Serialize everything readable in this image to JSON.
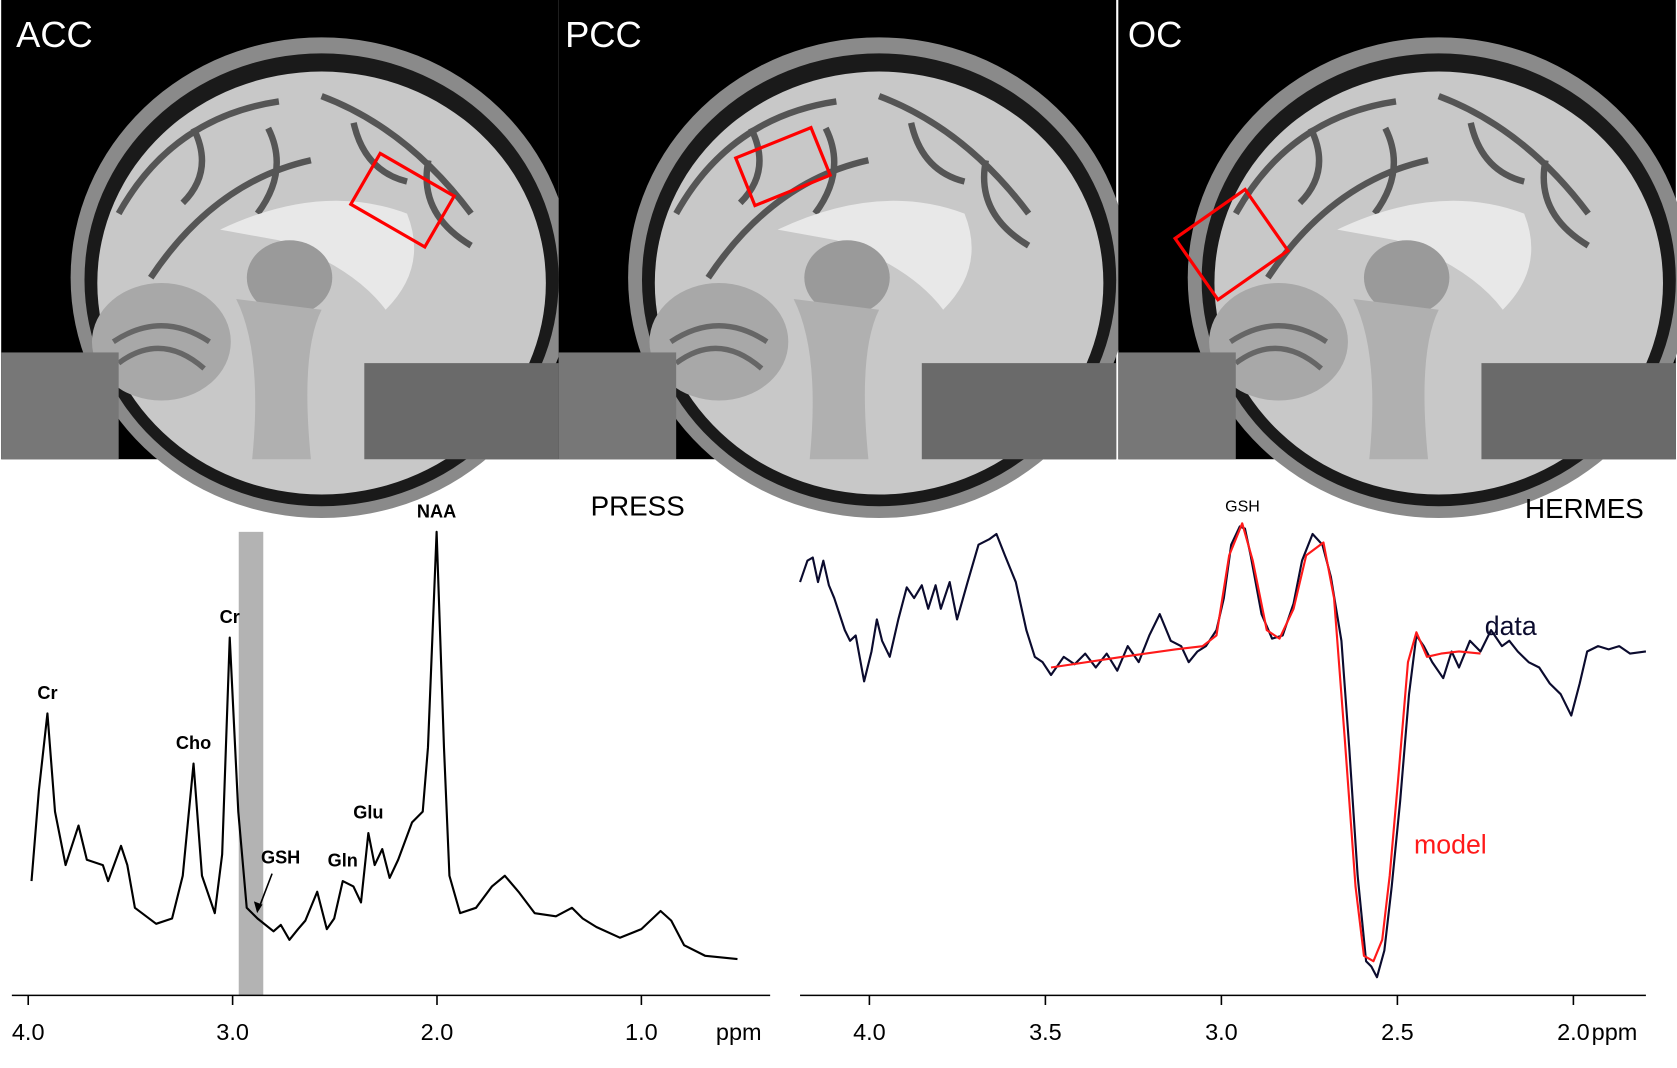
{
  "images": [
    {
      "label": "ACC"
    },
    {
      "label": "PCC"
    },
    {
      "label": "OC"
    }
  ],
  "chart_data": [
    {
      "type": "line",
      "title": "PRESS",
      "x_label": "ppm",
      "xlim": [
        4.08,
        0.37
      ],
      "ylim": [
        -5,
        105
      ],
      "xticks": [
        {
          "value": 4,
          "label": "4.0"
        },
        {
          "value": 3,
          "label": "3.0"
        },
        {
          "value": 2,
          "label": "2.0"
        },
        {
          "value": 1,
          "label": "1.0"
        }
      ],
      "highlight": [
        2.97,
        2.85
      ],
      "highlight_color": "#b3b3b3",
      "series": [
        {
          "color": "#000000",
          "x": [
            3.984,
            3.948,
            3.906,
            3.869,
            3.817,
            3.754,
            3.713,
            3.635,
            3.609,
            3.546,
            3.515,
            3.478,
            3.374,
            3.296,
            3.244,
            3.191,
            3.15,
            3.087,
            3.051,
            3.014,
            2.972,
            2.931,
            2.878,
            2.8,
            2.764,
            2.722,
            2.68,
            2.644,
            2.586,
            2.539,
            2.503,
            2.461,
            2.409,
            2.372,
            2.336,
            2.305,
            2.268,
            2.232,
            2.19,
            2.122,
            2.07,
            2.044,
            2.002,
            1.966,
            1.939,
            1.887,
            1.809,
            1.731,
            1.668,
            1.601,
            1.522,
            1.418,
            1.34,
            1.287,
            1.22,
            1.105,
            1.0,
            0.906,
            0.854,
            0.791,
            0.687,
            0.53
          ],
          "values": [
            18.25,
            39.5,
            57.5,
            34.5,
            22,
            31.25,
            23.25,
            22,
            18.25,
            26.5,
            22,
            12,
            8.25,
            9.5,
            19.5,
            45.75,
            19.5,
            10.75,
            24.5,
            75.25,
            34.5,
            12,
            9.5,
            6.5,
            8,
            4.5,
            7,
            9,
            15.75,
            7,
            9.5,
            18.25,
            17,
            13.25,
            29.5,
            22,
            25.75,
            19,
            23.25,
            32,
            34.5,
            49.5,
            100,
            49.5,
            19.5,
            10.75,
            12,
            17,
            19.5,
            15.75,
            10.75,
            10,
            12,
            9.5,
            7.5,
            5,
            7,
            11.25,
            9,
            3.25,
            0.75,
            0
          ]
        }
      ],
      "annotations": [
        {
          "text": "Cr",
          "x": 3.906
        },
        {
          "text": "Cho",
          "x": 3.191
        },
        {
          "text": "Cr",
          "x": 3.014
        },
        {
          "text": "NAA",
          "x": 2.002
        },
        {
          "text": "GSH",
          "x": 2.88,
          "arrow": true
        },
        {
          "text": "Gln",
          "x": 2.461
        },
        {
          "text": "Glu",
          "x": 2.336
        }
      ]
    },
    {
      "type": "line",
      "title": "HERMES",
      "x_label": "ppm",
      "xlim": [
        4.197,
        1.794
      ],
      "ylim": [
        -115,
        110
      ],
      "xticks": [
        {
          "value": 4,
          "label": "4.0"
        },
        {
          "value": 3.5,
          "label": "3.5"
        },
        {
          "value": 3,
          "label": "3.0"
        },
        {
          "value": 2.5,
          "label": "2.5"
        },
        {
          "value": 2,
          "label": "2.0"
        }
      ],
      "series": [
        {
          "name": "data",
          "color": "#0b0b2e",
          "x": [
            4.197,
            4.176,
            4.161,
            4.146,
            4.131,
            4.115,
            4.1,
            4.07,
            4.055,
            4.039,
            4.015,
            3.994,
            3.979,
            3.964,
            3.942,
            3.918,
            3.894,
            3.873,
            3.851,
            3.833,
            3.812,
            3.797,
            3.772,
            3.751,
            3.721,
            3.69,
            3.66,
            3.639,
            3.615,
            3.584,
            3.554,
            3.53,
            3.508,
            3.484,
            3.448,
            3.417,
            3.387,
            3.357,
            3.326,
            3.296,
            3.266,
            3.235,
            3.205,
            3.175,
            3.144,
            3.114,
            3.093,
            3.068,
            3.044,
            3.014,
            2.993,
            2.972,
            2.948,
            2.933,
            2.917,
            2.886,
            2.856,
            2.826,
            2.795,
            2.771,
            2.741,
            2.713,
            2.689,
            2.659,
            2.637,
            2.613,
            2.589,
            2.574,
            2.558,
            2.537,
            2.516,
            2.492,
            2.467,
            2.446,
            2.425,
            2.401,
            2.37,
            2.346,
            2.325,
            2.294,
            2.264,
            2.234,
            2.203,
            2.182,
            2.158,
            2.127,
            2.097,
            2.067,
            2.036,
            2.006,
            1.982,
            1.961,
            1.93,
            1.9,
            1.87,
            1.839,
            1.794
          ],
          "values": [
            77.5,
            87.5,
            89,
            77.5,
            87.5,
            76,
            70,
            55,
            50,
            52.5,
            31,
            45,
            60,
            50,
            42.5,
            60,
            75,
            70,
            76,
            65,
            76,
            65,
            77.5,
            60,
            77.5,
            95,
            97.5,
            100,
            90,
            77.5,
            55,
            42.5,
            40,
            34,
            42.5,
            39,
            44,
            37.5,
            44,
            36,
            47.5,
            40,
            52.5,
            62.5,
            50,
            47.5,
            40,
            45,
            47.5,
            55,
            70,
            95,
            103.5,
            102.5,
            90,
            62.5,
            51,
            52.5,
            67.5,
            87.5,
            100,
            95,
            80,
            50,
            0,
            -60,
            -100,
            -102.5,
            -107.5,
            -95,
            -65,
            -25,
            25,
            52.5,
            47.5,
            40,
            32.5,
            45,
            37.5,
            50,
            45,
            55,
            47.5,
            50,
            45,
            40,
            37.5,
            30,
            25,
            15,
            30,
            45,
            47.5,
            46,
            47.5,
            44,
            45
          ]
        },
        {
          "name": "model",
          "color": "#ff1a1a",
          "x": [
            3.484,
            3.281,
            3.129,
            3.053,
            3.014,
            2.978,
            2.941,
            2.911,
            2.871,
            2.835,
            2.795,
            2.759,
            2.71,
            2.68,
            2.65,
            2.619,
            2.595,
            2.568,
            2.543,
            2.522,
            2.498,
            2.47,
            2.446,
            2.416,
            2.376,
            2.325,
            2.264
          ],
          "values": [
            37.5,
            42.5,
            46,
            47.5,
            52.5,
            90,
            105,
            87.5,
            55,
            51,
            65,
            90,
            96,
            70,
            5,
            -65,
            -97.5,
            -100,
            -90,
            -60,
            -15,
            40,
            54,
            42.5,
            44,
            45,
            44
          ]
        }
      ],
      "annotations": [
        {
          "text": "GSH",
          "x": 2.94
        }
      ]
    }
  ]
}
